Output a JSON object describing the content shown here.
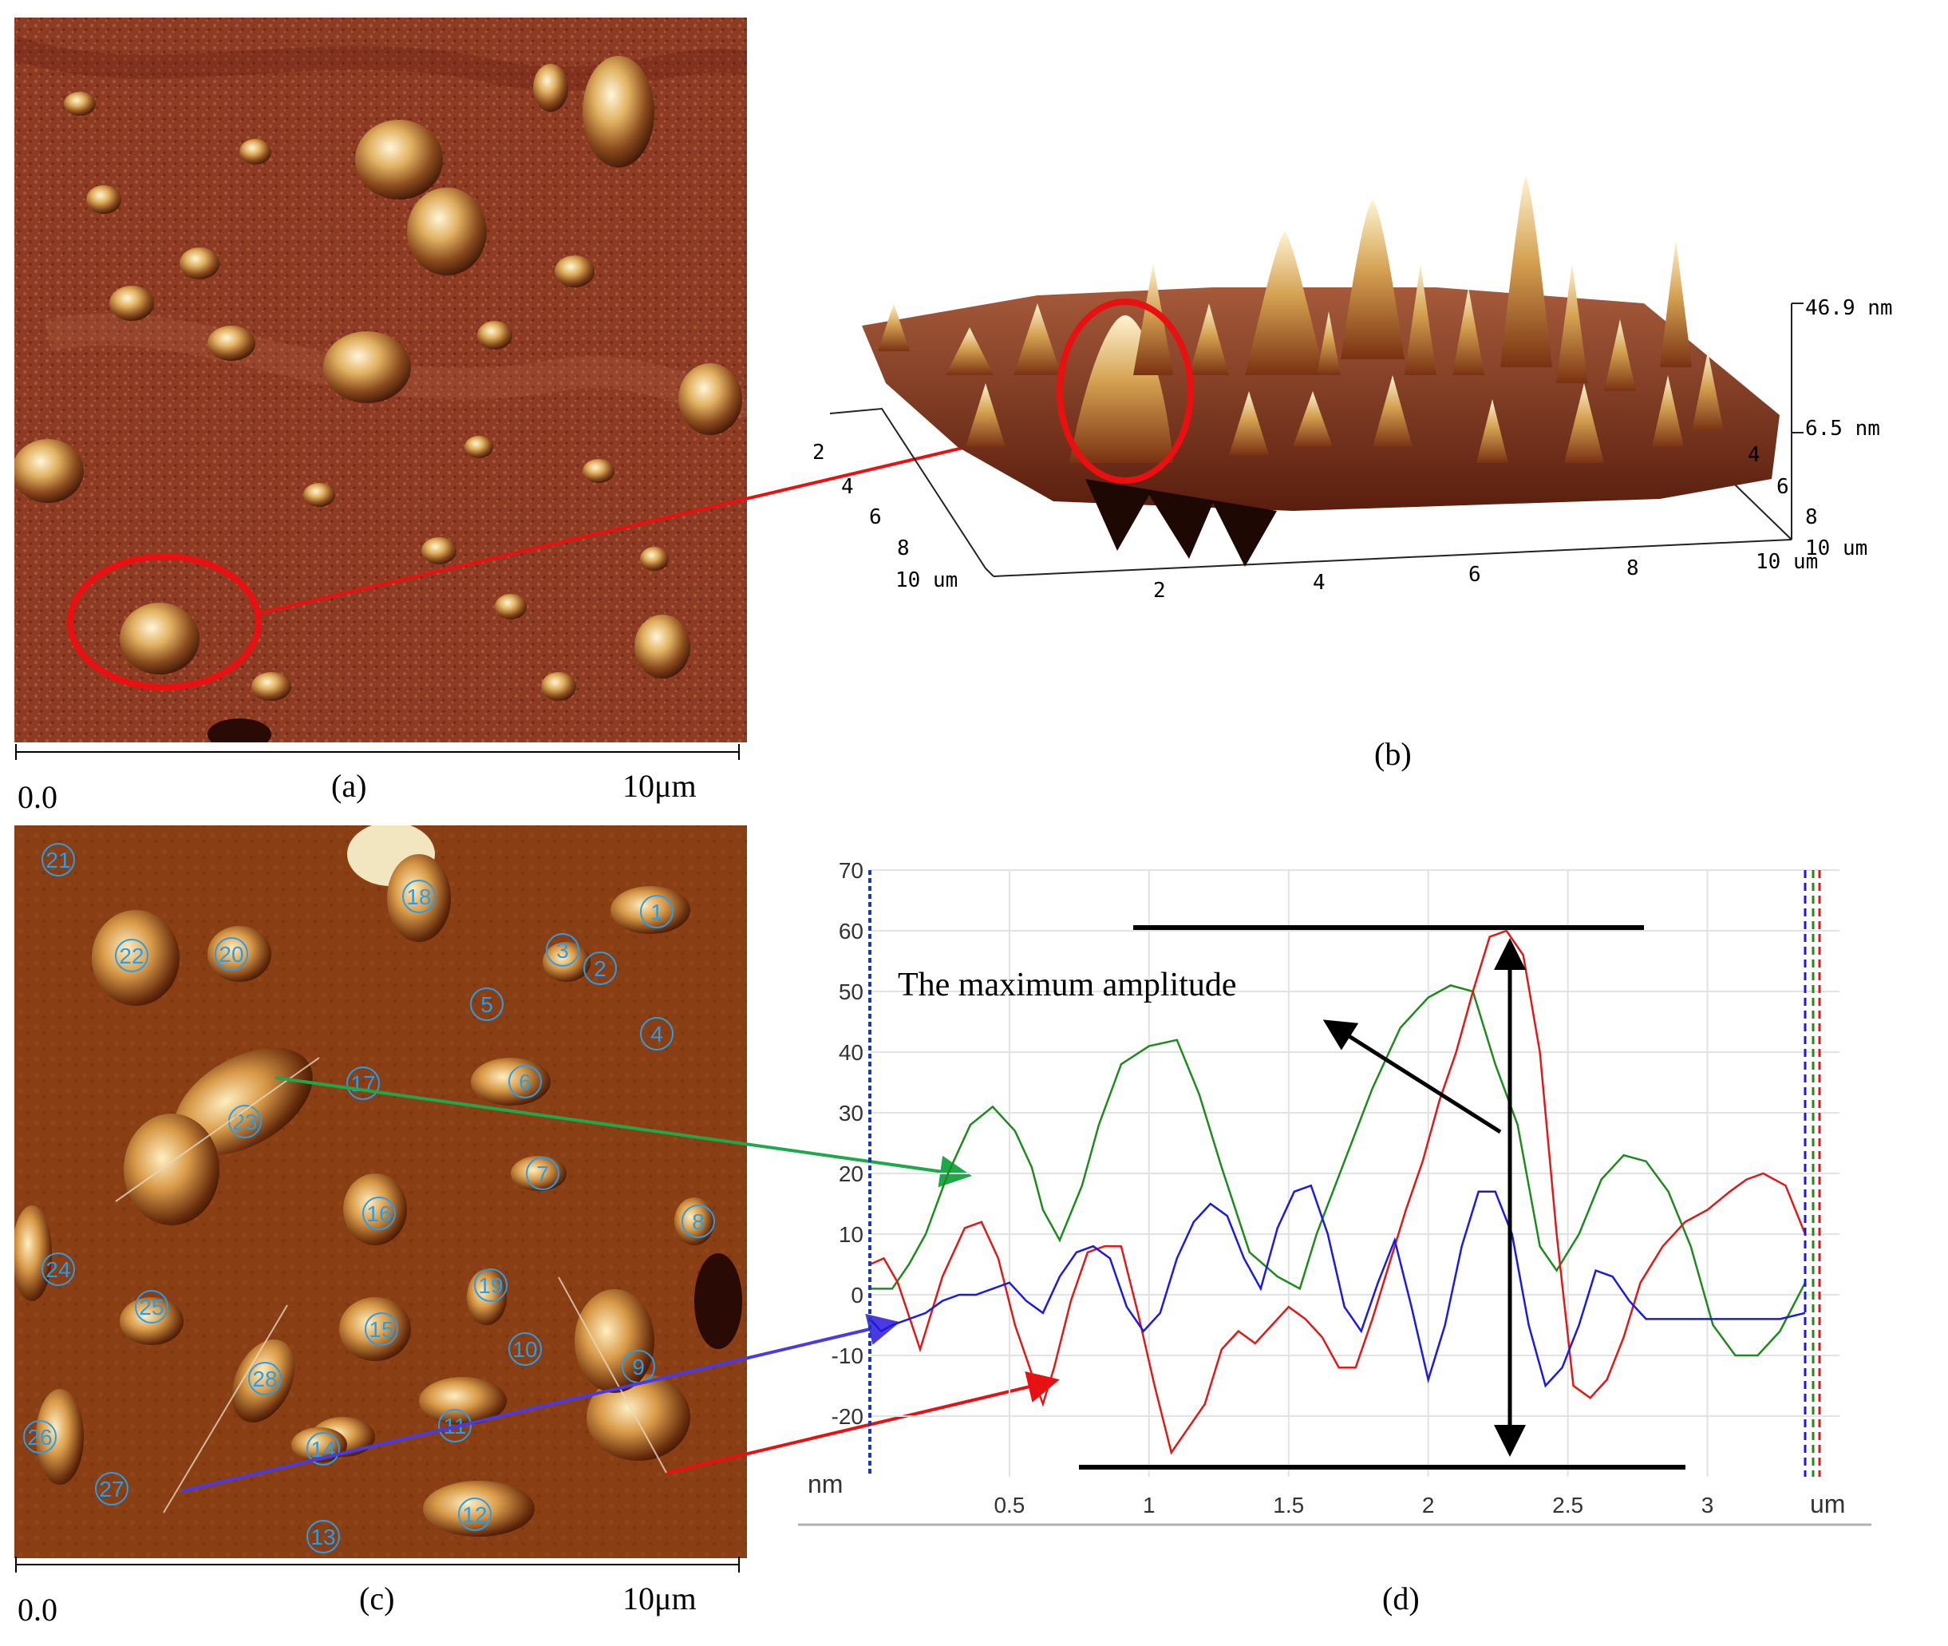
{
  "panel_a": {
    "label": "(a)",
    "scale_start": "0.0",
    "scale_end": "10μm"
  },
  "panel_b": {
    "label": "(b)",
    "z_max": "46.9 nm",
    "z_mid": "6.5 nm",
    "y_ticks": [
      "2",
      "4",
      "6",
      "8",
      "10 um"
    ],
    "x_ticks": [
      "2",
      "4",
      "6",
      "8",
      "10 um"
    ],
    "right_ticks": [
      "4",
      "6",
      "8",
      "10 um"
    ]
  },
  "panel_c": {
    "label": "(c)",
    "scale_start": "0.0",
    "scale_end": "10μm",
    "grains": [
      "1",
      "2",
      "3",
      "4",
      "5",
      "6",
      "7",
      "8",
      "9",
      "10",
      "11",
      "12",
      "13",
      "14",
      "15",
      "16",
      "17",
      "18",
      "19",
      "20",
      "21",
      "22",
      "23",
      "24",
      "25",
      "26",
      "27",
      "28"
    ]
  },
  "panel_d": {
    "label": "(d)",
    "annotation": "The maximum amplitude",
    "y_unit": "nm",
    "x_unit": "um"
  },
  "colors": {
    "green_trace": "#1e8a1e",
    "red_trace": "#e01818",
    "blue_trace": "#1a1ae0",
    "marker_red": "#e81010",
    "label_blue": "#2a9de6"
  },
  "chart_data": {
    "type": "line",
    "xlabel": "um",
    "ylabel": "nm",
    "xlim": [
      0,
      3.35
    ],
    "ylim": [
      -30,
      70
    ],
    "x_ticks": [
      0.5,
      1,
      1.5,
      2,
      2.5,
      3
    ],
    "y_ticks": [
      70,
      60,
      50,
      40,
      30,
      20,
      10,
      0,
      -10,
      -20
    ],
    "grid": true,
    "series": [
      {
        "name": "green",
        "color": "#1e8a1e",
        "x": [
          0,
          0.08,
          0.14,
          0.2,
          0.28,
          0.36,
          0.44,
          0.52,
          0.58,
          0.62,
          0.68,
          0.76,
          0.82,
          0.9,
          1.0,
          1.1,
          1.18,
          1.26,
          1.36,
          1.46,
          1.54,
          1.6,
          1.7,
          1.8,
          1.9,
          2.0,
          2.08,
          2.16,
          2.24,
          2.32,
          2.4,
          2.46,
          2.54,
          2.62,
          2.7,
          2.78,
          2.86,
          2.94,
          3.02,
          3.1,
          3.18,
          3.26,
          3.35
        ],
        "y": [
          1,
          1,
          5,
          10,
          20,
          28,
          31,
          27,
          21,
          14,
          9,
          18,
          28,
          38,
          41,
          42,
          33,
          21,
          7,
          3,
          1,
          10,
          22,
          34,
          44,
          49,
          51,
          50,
          38,
          28,
          8,
          4,
          10,
          19,
          23,
          22,
          17,
          8,
          -5,
          -10,
          -10,
          -6,
          2
        ]
      },
      {
        "name": "red",
        "color": "#e01818",
        "x": [
          0,
          0.05,
          0.1,
          0.18,
          0.26,
          0.34,
          0.4,
          0.46,
          0.52,
          0.58,
          0.62,
          0.66,
          0.72,
          0.78,
          0.84,
          0.9,
          0.96,
          1.02,
          1.08,
          1.14,
          1.2,
          1.26,
          1.32,
          1.38,
          1.44,
          1.5,
          1.56,
          1.62,
          1.68,
          1.74,
          1.8,
          1.86,
          1.92,
          1.98,
          2.04,
          2.1,
          2.16,
          2.22,
          2.28,
          2.34,
          2.4,
          2.46,
          2.52,
          2.58,
          2.64,
          2.7,
          2.76,
          2.84,
          2.92,
          3.0,
          3.08,
          3.14,
          3.2,
          3.28,
          3.35
        ],
        "y": [
          5,
          6,
          2,
          -9,
          3,
          11,
          12,
          6,
          -5,
          -13,
          -18,
          -12,
          -1,
          7,
          8,
          8,
          -3,
          -15,
          -26,
          -22,
          -18,
          -9,
          -6,
          -8,
          -5,
          -2,
          -4,
          -7,
          -12,
          -12,
          -4,
          5,
          14,
          22,
          32,
          40,
          50,
          59,
          60,
          56,
          40,
          10,
          -15,
          -17,
          -14,
          -7,
          2,
          8,
          12,
          14,
          17,
          19,
          20,
          18,
          10
        ]
      },
      {
        "name": "blue",
        "color": "#1a1ae0",
        "x": [
          0,
          0.04,
          0.08,
          0.14,
          0.2,
          0.26,
          0.32,
          0.38,
          0.44,
          0.5,
          0.56,
          0.62,
          0.68,
          0.74,
          0.8,
          0.86,
          0.92,
          0.98,
          1.04,
          1.1,
          1.16,
          1.22,
          1.28,
          1.34,
          1.4,
          1.46,
          1.52,
          1.58,
          1.64,
          1.7,
          1.76,
          1.82,
          1.88,
          1.94,
          2.0,
          2.06,
          2.12,
          2.18,
          2.24,
          2.3,
          2.36,
          2.42,
          2.48,
          2.54,
          2.6,
          2.66,
          2.72,
          2.78,
          2.86,
          2.96,
          3.06,
          3.16,
          3.26,
          3.35
        ],
        "y": [
          -4,
          -6,
          -5,
          -4,
          -3,
          -1,
          0,
          0,
          1,
          2,
          -1,
          -3,
          3,
          7,
          8,
          6,
          -2,
          -6,
          -3,
          6,
          12,
          15,
          13,
          6,
          1,
          11,
          17,
          18,
          10,
          -2,
          -6,
          2,
          9,
          -2,
          -14,
          -5,
          8,
          17,
          17,
          10,
          -5,
          -15,
          -12,
          -5,
          4,
          3,
          -1,
          -4,
          -4,
          -4,
          -4,
          -4,
          -4,
          -3
        ]
      }
    ]
  }
}
